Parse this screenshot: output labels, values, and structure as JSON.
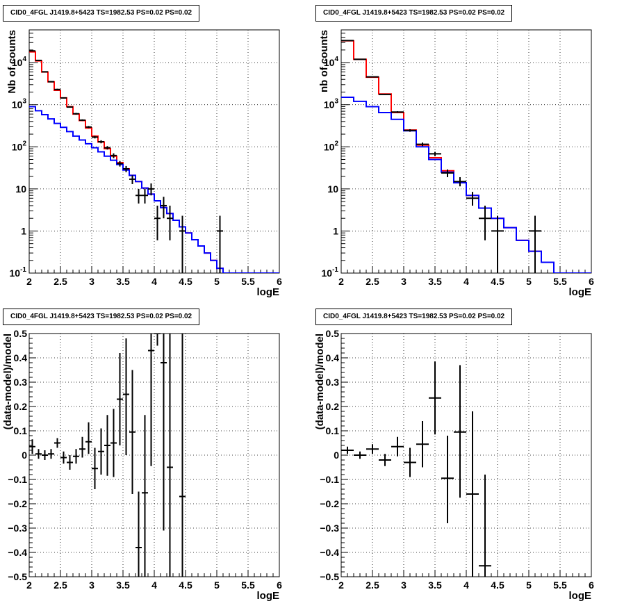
{
  "panels": [
    {
      "title": "CID0_4FGL J1419.8+5423 TS=1982.53 PS=0.02 PS=0.02",
      "xlabel": "logE",
      "ylabel": "Nb of counts"
    },
    {
      "title": "CID0_4FGL J1419.8+5423 TS=1982.53 PS=0.02 PS=0.02",
      "xlabel": "logE",
      "ylabel": "nb of counts"
    },
    {
      "title": "CID0_4FGL J1419.8+5423 TS=1982.53 PS=0.02 PS=0.02",
      "xlabel": "logE",
      "ylabel": "(data-model)/model"
    },
    {
      "title": "CID0_4FGL J1419.8+5423 TS=1982.53 PS=0.02 PS=0.02",
      "xlabel": "logE",
      "ylabel": "(data-model)/model"
    }
  ],
  "colors": {
    "total_model": "#ff0000",
    "background_model": "#0000ff",
    "data": "#000000",
    "grid": "#000000"
  },
  "chart_data": [
    {
      "type": "line",
      "title": "CID0_4FGL J1419.8+5423 TS=1982.53 PS=0.02 PS=0.02",
      "xlabel": "logE",
      "ylabel": "Nb of counts",
      "xlim": [
        2,
        6
      ],
      "ylim": [
        0.1,
        60000
      ],
      "yscale": "log",
      "grid": true,
      "x_ticks": [
        "2",
        "2.5",
        "3",
        "3.5",
        "4",
        "4.5",
        "5",
        "5.5",
        "6"
      ],
      "y_ticks": [
        "10^-1",
        "1",
        "10",
        "10^2",
        "10^3",
        "10^4"
      ],
      "bin_edges": [
        2.0,
        2.1,
        2.2,
        2.3,
        2.4,
        2.5,
        2.6,
        2.7,
        2.8,
        2.9,
        3.0,
        3.1,
        3.2,
        3.3,
        3.4,
        3.5,
        3.6,
        3.7,
        3.8,
        3.9,
        4.0,
        4.1,
        4.2,
        4.3,
        4.4,
        4.5,
        4.6,
        4.7,
        4.8,
        4.9,
        5.0,
        5.1,
        5.2,
        5.3,
        5.4,
        5.5,
        5.6,
        5.7,
        5.8,
        5.9,
        6.0
      ],
      "series": [
        {
          "values": [
            18000,
            11000,
            6000,
            3500,
            2200,
            1450,
            900,
            600,
            420,
            280,
            180,
            130,
            90,
            60,
            42,
            30,
            21,
            15,
            10.5,
            7.5,
            5.2,
            3.6,
            2.6,
            1.8,
            1.25,
            0.9,
            0.62,
            0.44,
            0.3,
            0.2,
            0.13,
            0.1,
            0.1,
            0.1,
            0.1,
            0.1,
            0.1,
            0.1,
            0.1,
            0.1
          ]
        },
        {
          "values": [
            900,
            720,
            580,
            460,
            360,
            290,
            230,
            180,
            145,
            118,
            95,
            76,
            60,
            48,
            38,
            28,
            21,
            15,
            10.5,
            7.5,
            5.2,
            3.6,
            2.6,
            1.8,
            1.25,
            0.9,
            0.62,
            0.44,
            0.3,
            0.2,
            0.13,
            0.1,
            0.1,
            0.1,
            0.1,
            0.1,
            0.1,
            0.1,
            0.1,
            0.1
          ]
        }
      ],
      "points": [
        {
          "x": 2.05,
          "y": 19000,
          "lo": 18500,
          "hi": 19500
        },
        {
          "x": 2.15,
          "y": 11300,
          "lo": 11000,
          "hi": 11600
        },
        {
          "x": 2.25,
          "y": 6050,
          "lo": 5900,
          "hi": 6200
        },
        {
          "x": 2.35,
          "y": 3520,
          "lo": 3400,
          "hi": 3640
        },
        {
          "x": 2.45,
          "y": 2300,
          "lo": 2200,
          "hi": 2400
        },
        {
          "x": 2.55,
          "y": 1450,
          "lo": 1400,
          "hi": 1500
        },
        {
          "x": 2.65,
          "y": 880,
          "lo": 850,
          "hi": 910
        },
        {
          "x": 2.75,
          "y": 610,
          "lo": 580,
          "hi": 640
        },
        {
          "x": 2.85,
          "y": 430,
          "lo": 410,
          "hi": 450
        },
        {
          "x": 2.95,
          "y": 295,
          "lo": 278,
          "hi": 312
        },
        {
          "x": 3.05,
          "y": 170,
          "lo": 158,
          "hi": 182
        },
        {
          "x": 3.15,
          "y": 132,
          "lo": 121,
          "hi": 143
        },
        {
          "x": 3.25,
          "y": 95,
          "lo": 86,
          "hi": 104
        },
        {
          "x": 3.35,
          "y": 62,
          "lo": 54,
          "hi": 70
        },
        {
          "x": 3.45,
          "y": 40,
          "lo": 34,
          "hi": 46
        },
        {
          "x": 3.55,
          "y": 30,
          "lo": 25,
          "hi": 35
        },
        {
          "x": 3.65,
          "y": 17,
          "lo": 13,
          "hi": 21
        },
        {
          "x": 3.75,
          "y": 7,
          "lo": 4.5,
          "hi": 10
        },
        {
          "x": 3.85,
          "y": 7,
          "lo": 4.5,
          "hi": 10
        },
        {
          "x": 3.95,
          "y": 10,
          "lo": 7,
          "hi": 13.5
        },
        {
          "x": 4.05,
          "y": 2,
          "lo": 0.6,
          "hi": 4
        },
        {
          "x": 4.15,
          "y": 4,
          "lo": 2,
          "hi": 6.5
        },
        {
          "x": 4.25,
          "y": 2,
          "lo": 0.6,
          "hi": 4
        },
        {
          "x": 4.45,
          "y": 1,
          "lo": 0.1,
          "hi": 2.3
        },
        {
          "x": 5.05,
          "y": 1,
          "lo": 0.1,
          "hi": 2.3
        }
      ]
    },
    {
      "type": "line",
      "title": "CID0_4FGL J1419.8+5423 TS=1982.53 PS=0.02 PS=0.02",
      "xlabel": "logE",
      "ylabel": "nb of counts",
      "xlim": [
        2,
        6
      ],
      "ylim": [
        0.1,
        60000
      ],
      "yscale": "log",
      "grid": true,
      "x_ticks": [
        "2",
        "2.5",
        "3",
        "3.5",
        "4",
        "4.5",
        "5",
        "5.5",
        "6"
      ],
      "y_ticks": [
        "10^-1",
        "1",
        "10",
        "10^2",
        "10^3",
        "10^4"
      ],
      "bin_edges": [
        2.0,
        2.2,
        2.4,
        2.6,
        2.8,
        3.0,
        3.2,
        3.4,
        3.6,
        3.8,
        4.0,
        4.2,
        4.4,
        4.6,
        4.8,
        5.0,
        5.2,
        5.4,
        5.6,
        5.8,
        6.0
      ],
      "series": [
        {
          "values": [
            33000,
            12000,
            4500,
            1800,
            650,
            250,
            110,
            55,
            27,
            14,
            7,
            3.5,
            2,
            1.2,
            0.6,
            0.33,
            0.18,
            0.1,
            0.1,
            0.1
          ]
        },
        {
          "values": [
            1500,
            1200,
            900,
            650,
            450,
            240,
            100,
            50,
            25,
            14,
            7,
            3.5,
            2,
            1.2,
            0.6,
            0.33,
            0.18,
            0.1,
            0.1,
            0.1
          ]
        }
      ],
      "points": [
        {
          "x": 2.1,
          "y": 33500,
          "lo": 33200,
          "hi": 33800
        },
        {
          "x": 2.3,
          "y": 12000,
          "lo": 11800,
          "hi": 12200
        },
        {
          "x": 2.5,
          "y": 4600,
          "lo": 4500,
          "hi": 4700
        },
        {
          "x": 2.7,
          "y": 1760,
          "lo": 1710,
          "hi": 1810
        },
        {
          "x": 2.9,
          "y": 670,
          "lo": 640,
          "hi": 700
        },
        {
          "x": 3.1,
          "y": 245,
          "lo": 228,
          "hi": 262
        },
        {
          "x": 3.3,
          "y": 115,
          "lo": 104,
          "hi": 126
        },
        {
          "x": 3.5,
          "y": 68,
          "lo": 60,
          "hi": 76
        },
        {
          "x": 3.7,
          "y": 24,
          "lo": 19,
          "hi": 29
        },
        {
          "x": 3.9,
          "y": 15,
          "lo": 11.5,
          "hi": 19
        },
        {
          "x": 4.1,
          "y": 6,
          "lo": 4,
          "hi": 8.5
        },
        {
          "x": 4.3,
          "y": 2,
          "lo": 0.6,
          "hi": 4
        },
        {
          "x": 4.5,
          "y": 1,
          "lo": 0.1,
          "hi": 2.3
        },
        {
          "x": 5.1,
          "y": 1,
          "lo": 0.1,
          "hi": 2.3
        }
      ]
    },
    {
      "type": "scatter",
      "title": "CID0_4FGL J1419.8+5423 TS=1982.53 PS=0.02 PS=0.02",
      "xlabel": "logE",
      "ylabel": "(data-model)/model",
      "xlim": [
        2,
        6
      ],
      "ylim": [
        -0.5,
        0.5
      ],
      "grid": true,
      "x_ticks": [
        "2",
        "2.5",
        "3",
        "3.5",
        "4",
        "4.5",
        "5",
        "5.5",
        "6"
      ],
      "y_ticks": [
        "-0.5",
        "-0.4",
        "-0.3",
        "-0.2",
        "-0.1",
        "0",
        "0.1",
        "0.2",
        "0.3",
        "0.4",
        "0.5"
      ],
      "xerr": 0.05,
      "points": [
        {
          "x": 2.05,
          "y": 0.035,
          "lo": 0.005,
          "hi": 0.065
        },
        {
          "x": 2.15,
          "y": 0.005,
          "lo": -0.015,
          "hi": 0.025
        },
        {
          "x": 2.25,
          "y": 0.0,
          "lo": -0.02,
          "hi": 0.02
        },
        {
          "x": 2.35,
          "y": 0.005,
          "lo": -0.015,
          "hi": 0.025
        },
        {
          "x": 2.45,
          "y": 0.05,
          "lo": 0.03,
          "hi": 0.07
        },
        {
          "x": 2.55,
          "y": -0.01,
          "lo": -0.035,
          "hi": 0.015
        },
        {
          "x": 2.65,
          "y": -0.03,
          "lo": -0.06,
          "hi": 0.0
        },
        {
          "x": 2.75,
          "y": -0.005,
          "lo": -0.035,
          "hi": 0.025
        },
        {
          "x": 2.85,
          "y": 0.025,
          "lo": -0.01,
          "hi": 0.075
        },
        {
          "x": 2.95,
          "y": 0.055,
          "lo": 0.005,
          "hi": 0.135
        },
        {
          "x": 3.05,
          "y": -0.055,
          "lo": -0.14,
          "hi": 0.03
        },
        {
          "x": 3.15,
          "y": 0.015,
          "lo": -0.08,
          "hi": 0.11
        },
        {
          "x": 3.25,
          "y": 0.04,
          "lo": -0.085,
          "hi": 0.165
        },
        {
          "x": 3.35,
          "y": 0.05,
          "lo": -0.09,
          "hi": 0.19
        },
        {
          "x": 3.45,
          "y": 0.23,
          "lo": 0.04,
          "hi": 0.42
        },
        {
          "x": 3.55,
          "y": 0.25,
          "lo": 0.0,
          "hi": 0.48
        },
        {
          "x": 3.65,
          "y": 0.095,
          "lo": -0.16,
          "hi": 0.35
        },
        {
          "x": 3.75,
          "y": -0.38,
          "lo": -0.5,
          "hi": -0.15
        },
        {
          "x": 3.85,
          "y": -0.155,
          "lo": -0.5,
          "hi": 0.165
        },
        {
          "x": 3.95,
          "y": 0.43,
          "lo": -0.045,
          "hi": 0.5
        },
        {
          "x": 4.05,
          "y": 0.55,
          "lo": 0.45,
          "hi": 0.6
        },
        {
          "x": 4.15,
          "y": 0.38,
          "lo": -0.31,
          "hi": 0.5
        },
        {
          "x": 4.25,
          "y": -0.05,
          "lo": -0.5,
          "hi": 0.5
        },
        {
          "x": 4.45,
          "y": -0.17,
          "lo": -0.5,
          "hi": 0.5
        }
      ]
    },
    {
      "type": "scatter",
      "title": "CID0_4FGL J1419.8+5423 TS=1982.53 PS=0.02 PS=0.02",
      "xlabel": "logE",
      "ylabel": "(data-model)/model",
      "xlim": [
        2,
        6
      ],
      "ylim": [
        -0.5,
        0.5
      ],
      "grid": true,
      "x_ticks": [
        "2",
        "2.5",
        "3",
        "3.5",
        "4",
        "4.5",
        "5",
        "5.5",
        "6"
      ],
      "y_ticks": [
        "-0.5",
        "-0.4",
        "-0.3",
        "-0.2",
        "-0.1",
        "0",
        "0.1",
        "0.2",
        "0.3",
        "0.4",
        "0.5"
      ],
      "xerr": 0.1,
      "points": [
        {
          "x": 2.1,
          "y": 0.02,
          "lo": 0.005,
          "hi": 0.035
        },
        {
          "x": 2.3,
          "y": 0.0,
          "lo": -0.015,
          "hi": 0.015
        },
        {
          "x": 2.5,
          "y": 0.025,
          "lo": 0.005,
          "hi": 0.045
        },
        {
          "x": 2.7,
          "y": -0.02,
          "lo": -0.045,
          "hi": 0.005
        },
        {
          "x": 2.9,
          "y": 0.035,
          "lo": -0.005,
          "hi": 0.075
        },
        {
          "x": 3.1,
          "y": -0.03,
          "lo": -0.09,
          "hi": 0.03
        },
        {
          "x": 3.3,
          "y": 0.045,
          "lo": -0.05,
          "hi": 0.14
        },
        {
          "x": 3.5,
          "y": 0.235,
          "lo": 0.085,
          "hi": 0.385
        },
        {
          "x": 3.7,
          "y": -0.095,
          "lo": -0.28,
          "hi": 0.08
        },
        {
          "x": 3.9,
          "y": 0.095,
          "lo": -0.175,
          "hi": 0.37
        },
        {
          "x": 4.1,
          "y": -0.16,
          "lo": -0.5,
          "hi": 0.18
        },
        {
          "x": 4.3,
          "y": -0.455,
          "lo": -0.5,
          "hi": -0.08
        }
      ]
    }
  ]
}
